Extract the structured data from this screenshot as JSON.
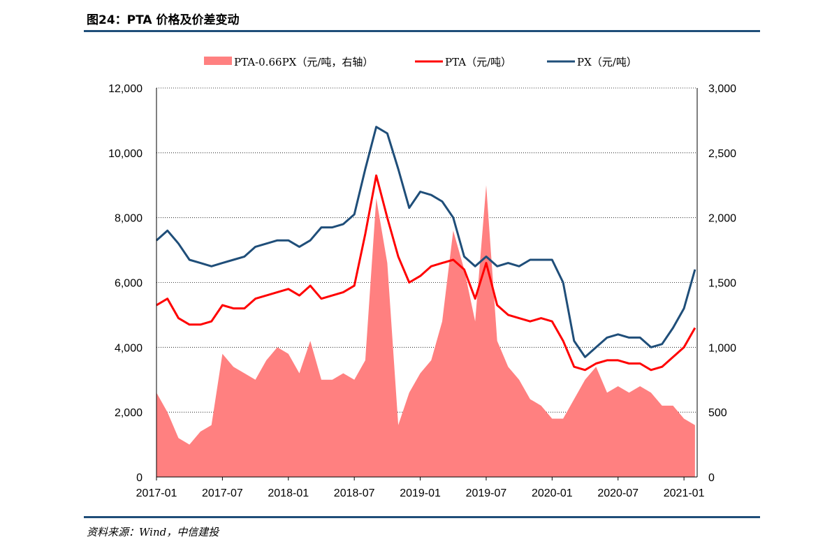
{
  "header": {
    "title": "图24：PTA 价格及价差变动"
  },
  "footer": {
    "source": "资料来源：Wind，中信建投"
  },
  "colors": {
    "spread": "#ff8080",
    "pta": "#ff0000",
    "px": "#1f4e79",
    "rule": "#1f4e79"
  },
  "chart_data": {
    "type": "line",
    "title": "",
    "xlabel": "",
    "ylabel": "",
    "grid": true,
    "legend_position": "top",
    "x_tick_labels": [
      "2017-01",
      "2017-07",
      "2018-01",
      "2018-07",
      "2019-01",
      "2019-07",
      "2020-01",
      "2020-07",
      "2021-01"
    ],
    "y_left": {
      "range": [
        0,
        12000
      ],
      "tick_labels": [
        "0",
        "2,000",
        "4,000",
        "6,000",
        "8,000",
        "10,000",
        "12,000"
      ]
    },
    "y_right": {
      "range": [
        0,
        3000
      ],
      "tick_labels": [
        "0",
        "500",
        "1,000",
        "1,500",
        "2,000",
        "2,500",
        "3,000"
      ]
    },
    "series": [
      {
        "name": "PTA-0.66PX（元/吨，右轴）",
        "type": "area",
        "axis": "right",
        "x": [
          "2017-01",
          "2017-02",
          "2017-03",
          "2017-04",
          "2017-05",
          "2017-06",
          "2017-07",
          "2017-08",
          "2017-09",
          "2017-10",
          "2017-11",
          "2017-12",
          "2018-01",
          "2018-02",
          "2018-03",
          "2018-04",
          "2018-05",
          "2018-06",
          "2018-07",
          "2018-08",
          "2018-09",
          "2018-10",
          "2018-11",
          "2018-12",
          "2019-01",
          "2019-02",
          "2019-03",
          "2019-04",
          "2019-05",
          "2019-06",
          "2019-07",
          "2019-08",
          "2019-09",
          "2019-10",
          "2019-11",
          "2019-12",
          "2020-01",
          "2020-02",
          "2020-03",
          "2020-04",
          "2020-05",
          "2020-06",
          "2020-07",
          "2020-08",
          "2020-09",
          "2020-10",
          "2020-11",
          "2020-12",
          "2021-01",
          "2021-02"
        ],
        "values": [
          650,
          500,
          300,
          250,
          350,
          400,
          950,
          850,
          800,
          750,
          900,
          1000,
          950,
          800,
          1050,
          750,
          750,
          800,
          750,
          900,
          2150,
          1650,
          400,
          650,
          800,
          900,
          1200,
          1900,
          1600,
          1200,
          2250,
          1050,
          850,
          750,
          600,
          550,
          450,
          450,
          600,
          750,
          850,
          650,
          700,
          650,
          700,
          650,
          550,
          550,
          450,
          400
        ]
      },
      {
        "name": "PTA（元/吨）",
        "type": "line",
        "axis": "left",
        "x": [
          "2017-01",
          "2017-02",
          "2017-03",
          "2017-04",
          "2017-05",
          "2017-06",
          "2017-07",
          "2017-08",
          "2017-09",
          "2017-10",
          "2017-11",
          "2017-12",
          "2018-01",
          "2018-02",
          "2018-03",
          "2018-04",
          "2018-05",
          "2018-06",
          "2018-07",
          "2018-08",
          "2018-09",
          "2018-10",
          "2018-11",
          "2018-12",
          "2019-01",
          "2019-02",
          "2019-03",
          "2019-04",
          "2019-05",
          "2019-06",
          "2019-07",
          "2019-08",
          "2019-09",
          "2019-10",
          "2019-11",
          "2019-12",
          "2020-01",
          "2020-02",
          "2020-03",
          "2020-04",
          "2020-05",
          "2020-06",
          "2020-07",
          "2020-08",
          "2020-09",
          "2020-10",
          "2020-11",
          "2020-12",
          "2021-01",
          "2021-02"
        ],
        "values": [
          5300,
          5500,
          4900,
          4700,
          4700,
          4800,
          5300,
          5200,
          5200,
          5500,
          5600,
          5700,
          5800,
          5600,
          5900,
          5500,
          5600,
          5700,
          5900,
          7500,
          9300,
          8000,
          6800,
          6000,
          6200,
          6500,
          6600,
          6700,
          6400,
          5500,
          6600,
          5300,
          5000,
          4900,
          4800,
          4900,
          4800,
          4200,
          3400,
          3300,
          3500,
          3600,
          3600,
          3500,
          3500,
          3300,
          3400,
          3700,
          4000,
          4600
        ]
      },
      {
        "name": "PX（元/吨）",
        "type": "line",
        "axis": "left",
        "x": [
          "2017-01",
          "2017-02",
          "2017-03",
          "2017-04",
          "2017-05",
          "2017-06",
          "2017-07",
          "2017-08",
          "2017-09",
          "2017-10",
          "2017-11",
          "2017-12",
          "2018-01",
          "2018-02",
          "2018-03",
          "2018-04",
          "2018-05",
          "2018-06",
          "2018-07",
          "2018-08",
          "2018-09",
          "2018-10",
          "2018-11",
          "2018-12",
          "2019-01",
          "2019-02",
          "2019-03",
          "2019-04",
          "2019-05",
          "2019-06",
          "2019-07",
          "2019-08",
          "2019-09",
          "2019-10",
          "2019-11",
          "2019-12",
          "2020-01",
          "2020-02",
          "2020-03",
          "2020-04",
          "2020-05",
          "2020-06",
          "2020-07",
          "2020-08",
          "2020-09",
          "2020-10",
          "2020-11",
          "2020-12",
          "2021-01",
          "2021-02"
        ],
        "values": [
          7300,
          7600,
          7200,
          6700,
          6600,
          6500,
          6600,
          6700,
          6800,
          7100,
          7200,
          7300,
          7300,
          7100,
          7300,
          7700,
          7700,
          7800,
          8100,
          9500,
          10800,
          10600,
          9500,
          8300,
          8800,
          8700,
          8500,
          8000,
          6800,
          6500,
          6800,
          6500,
          6600,
          6500,
          6700,
          6700,
          6700,
          6000,
          4200,
          3700,
          4000,
          4300,
          4400,
          4300,
          4300,
          4000,
          4100,
          4600,
          5200,
          6400
        ]
      }
    ]
  }
}
